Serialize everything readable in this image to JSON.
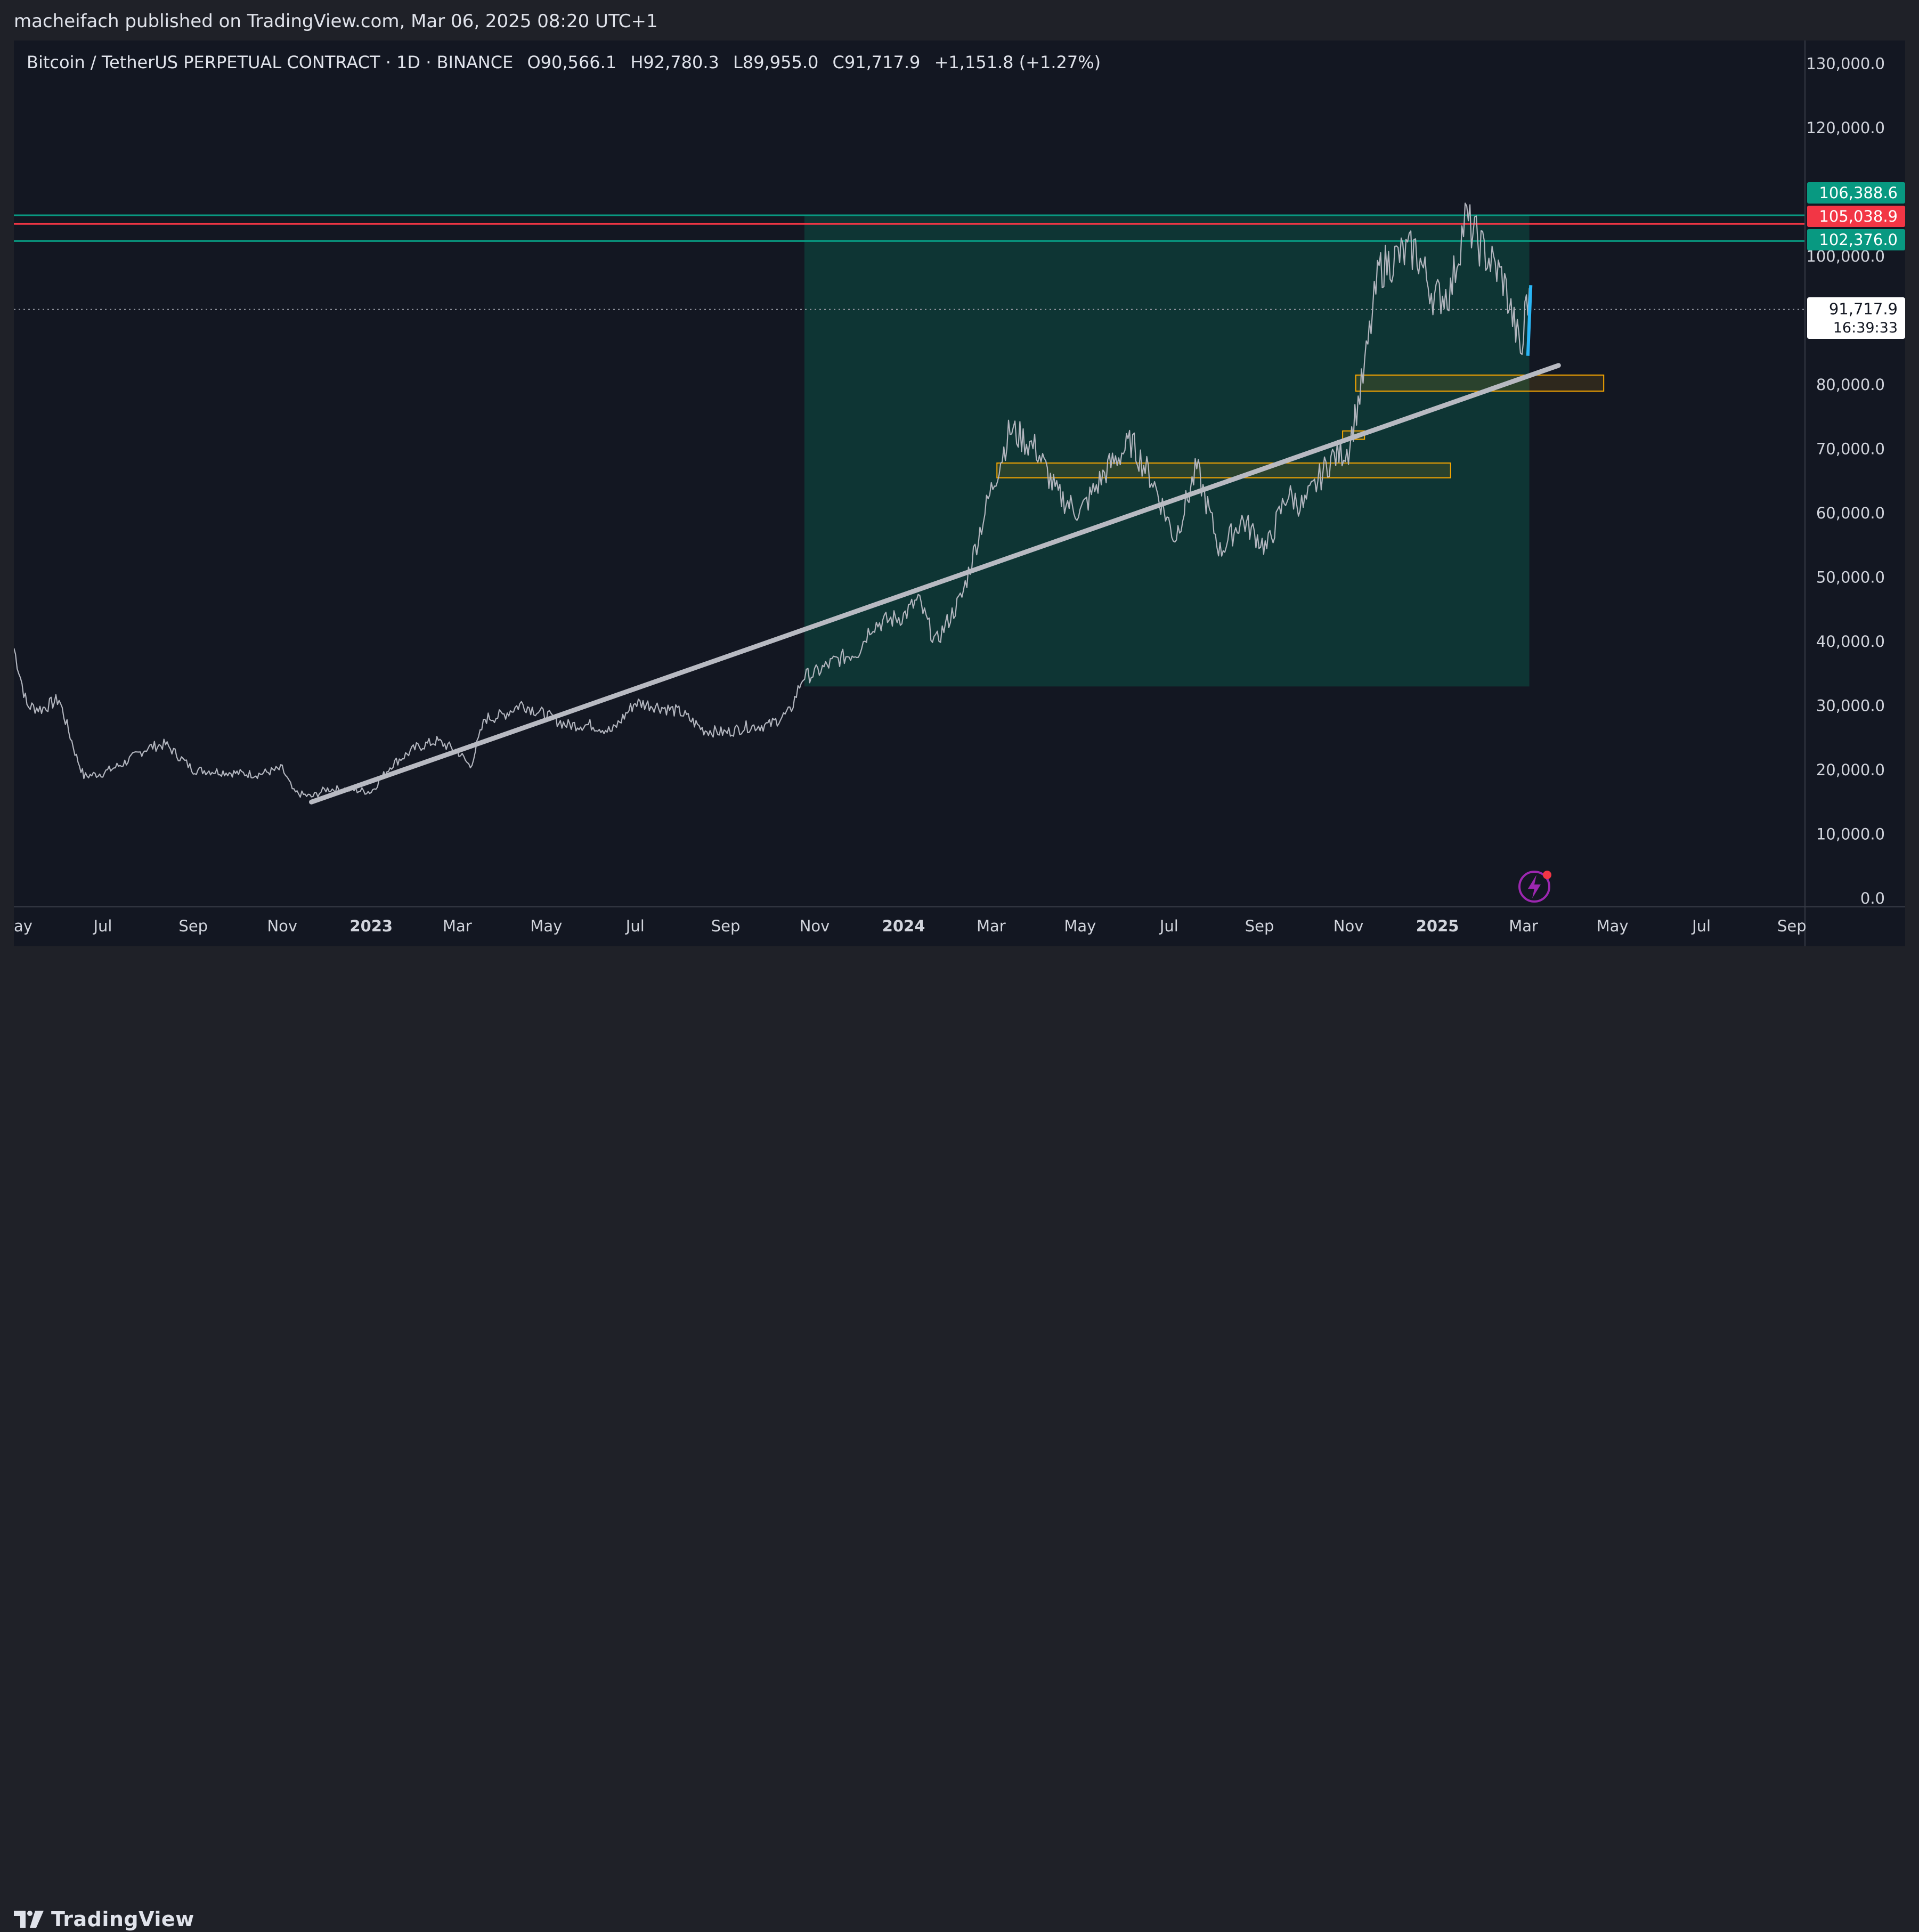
{
  "header": {
    "published_text": "macheifach published on TradingView.com, Mar 06, 2025 08:20 UTC+1"
  },
  "legend": {
    "symbol": "Bitcoin / TetherUS PERPETUAL CONTRACT · 1D · BINANCE",
    "open": "O90,566.1",
    "high": "H92,780.3",
    "low": "L89,955.0",
    "close": "C91,717.9",
    "change": "+1,151.8 (+1.27%)"
  },
  "price_tags": {
    "upper_green": "106,388.6",
    "red": "105,038.9",
    "lower_green": "102,376.0",
    "last_price": "91,717.9",
    "countdown": "16:39:33"
  },
  "footer": {
    "brand": "TradingView"
  },
  "colors": {
    "background": "#131722",
    "candles": "#b2b5be",
    "trendline": "#b8bac2",
    "green_line": "#089981",
    "red_line": "#f23645",
    "demand_zone": "#0e3b37",
    "order_block": "#f7a600",
    "highlight_candle_blue": "#29b6f6"
  },
  "chart_data": {
    "type": "line",
    "title": "",
    "symbol": "BTCUSDT.P",
    "timeframe": "1D",
    "exchange": "BINANCE",
    "xlabel": "",
    "ylabel": "",
    "x_tick_labels": [
      "ay",
      "Jul",
      "Sep",
      "Nov",
      "2023",
      "Mar",
      "May",
      "Jul",
      "Sep",
      "Nov",
      "2024",
      "Mar",
      "May",
      "Jul",
      "Sep",
      "Nov",
      "2025",
      "Mar",
      "May",
      "Jul",
      "Sep"
    ],
    "x_tick_dates": [
      "2022-05-01",
      "2022-07-01",
      "2022-09-01",
      "2022-11-01",
      "2023-01-01",
      "2023-03-01",
      "2023-05-01",
      "2023-07-01",
      "2023-09-01",
      "2023-11-01",
      "2024-01-01",
      "2024-03-01",
      "2024-05-01",
      "2024-07-01",
      "2024-09-01",
      "2024-11-01",
      "2025-01-01",
      "2025-03-01",
      "2025-05-01",
      "2025-07-01",
      "2025-09-01"
    ],
    "y_tick_labels": [
      "0.0",
      "10,000.0",
      "20,000.0",
      "30,000.0",
      "40,000.0",
      "50,000.0",
      "60,000.0",
      "70,000.0",
      "80,000.0",
      "100,000.0",
      "120,000.0",
      "130,000.0"
    ],
    "y_tick_values": [
      0,
      10000,
      20000,
      30000,
      40000,
      50000,
      60000,
      70000,
      80000,
      100000,
      120000,
      130000
    ],
    "ylim": [
      0,
      130000
    ],
    "xlim": [
      "2022-05-01",
      "2025-09-10"
    ],
    "grid": false,
    "series": [
      {
        "dates": [
          "2022-05-01",
          "2022-05-10",
          "2022-05-20",
          "2022-06-01",
          "2022-06-13",
          "2022-06-18",
          "2022-07-01",
          "2022-07-15",
          "2022-08-01",
          "2022-08-13",
          "2022-08-25",
          "2022-09-01",
          "2022-09-15",
          "2022-10-01",
          "2022-10-15",
          "2022-11-01",
          "2022-11-09",
          "2022-11-21",
          "2022-12-01",
          "2022-12-15",
          "2023-01-01",
          "2023-01-15",
          "2023-02-01",
          "2023-02-15",
          "2023-03-01",
          "2023-03-10",
          "2023-03-20",
          "2023-04-01",
          "2023-04-14",
          "2023-05-01",
          "2023-05-15",
          "2023-06-01",
          "2023-06-15",
          "2023-07-01",
          "2023-07-15",
          "2023-08-01",
          "2023-08-17",
          "2023-09-01",
          "2023-09-15",
          "2023-10-01",
          "2023-10-15",
          "2023-10-24",
          "2023-11-01",
          "2023-11-15",
          "2023-12-01",
          "2023-12-10",
          "2024-01-01",
          "2024-01-11",
          "2024-01-23",
          "2024-02-10",
          "2024-02-28",
          "2024-03-14",
          "2024-04-01",
          "2024-04-15",
          "2024-05-01",
          "2024-05-20",
          "2024-06-05",
          "2024-06-20",
          "2024-07-05",
          "2024-07-20",
          "2024-08-05",
          "2024-08-20",
          "2024-09-06",
          "2024-09-20",
          "2024-10-01",
          "2024-10-20",
          "2024-11-01",
          "2024-11-11",
          "2024-11-22",
          "2024-12-05",
          "2024-12-17",
          "2024-12-30",
          "2025-01-10",
          "2025-01-20",
          "2025-02-01",
          "2025-02-15",
          "2025-02-28",
          "2025-03-03",
          "2025-03-06"
        ],
        "values": [
          39000,
          30000,
          29500,
          31000,
          22000,
          19000,
          19500,
          21000,
          23500,
          24000,
          21500,
          20000,
          19800,
          19500,
          19300,
          20200,
          16500,
          15800,
          17000,
          17000,
          16600,
          20800,
          23500,
          24500,
          23000,
          20500,
          28000,
          28500,
          30300,
          28500,
          27000,
          27000,
          26000,
          30500,
          30000,
          29000,
          26200,
          25800,
          26700,
          27000,
          29000,
          34500,
          35000,
          37000,
          38500,
          42500,
          44000,
          46500,
          39800,
          47000,
          62000,
          73000,
          70000,
          63000,
          60000,
          67000,
          71000,
          65000,
          56000,
          67000,
          54000,
          59000,
          54500,
          63000,
          61000,
          68500,
          70000,
          81000,
          98000,
          100000,
          101000,
          93500,
          94500,
          106000,
          101000,
          96500,
          84500,
          94000,
          91717.9
        ],
        "name": ""
      }
    ],
    "horizontal_levels": [
      106388.6,
      105038.9,
      102376.0
    ],
    "last_price": 91717.9,
    "trendline": {
      "from": {
        "x": "2022-11-21",
        "y": 15000
      },
      "to": {
        "x": "2025-03-25",
        "y": 83000
      }
    },
    "annotations": [
      {
        "type": "zone",
        "x1": "2023-10-25",
        "x2": "2025-03-05",
        "y1": 33000,
        "y2": 106400
      },
      {
        "type": "box",
        "x1": "2024-11-06",
        "x2": "2025-04-25",
        "y1": 79000,
        "y2": 81500
      },
      {
        "type": "box",
        "x1": "2024-03-05",
        "x2": "2025-01-10",
        "y1": 65500,
        "y2": 67800
      },
      {
        "type": "box",
        "x1": "2024-10-28",
        "x2": "2024-11-12",
        "y1": 71500,
        "y2": 72800
      }
    ]
  }
}
